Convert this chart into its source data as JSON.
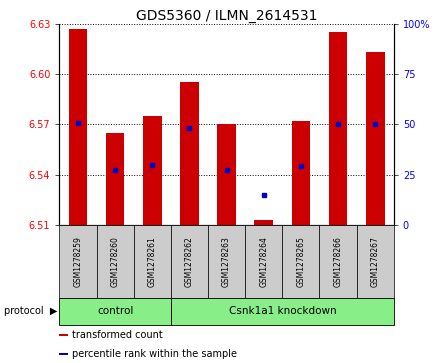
{
  "title": "GDS5360 / ILMN_2614531",
  "samples": [
    "GSM1278259",
    "GSM1278260",
    "GSM1278261",
    "GSM1278262",
    "GSM1278263",
    "GSM1278264",
    "GSM1278265",
    "GSM1278266",
    "GSM1278267"
  ],
  "transformed_count_top": [
    6.627,
    6.565,
    6.575,
    6.595,
    6.57,
    6.513,
    6.572,
    6.625,
    6.613
  ],
  "transformed_count_bottom": [
    6.51,
    6.51,
    6.51,
    6.51,
    6.51,
    6.51,
    6.51,
    6.51,
    6.51
  ],
  "percentile_rank_y": [
    6.571,
    6.543,
    6.546,
    6.568,
    6.543,
    6.528,
    6.545,
    6.57,
    6.57
  ],
  "ylim": [
    6.51,
    6.63
  ],
  "yticks_left": [
    6.51,
    6.54,
    6.57,
    6.6,
    6.63
  ],
  "yticks_right_labels": [
    "0",
    "25",
    "50",
    "75",
    "100%"
  ],
  "yticks_right_vals": [
    0,
    25,
    50,
    75,
    100
  ],
  "bar_color": "#cc0000",
  "dot_color": "#0000cc",
  "protocol_groups": [
    {
      "label": "control",
      "start": 0,
      "end": 3
    },
    {
      "label": "Csnk1a1 knockdown",
      "start": 3,
      "end": 9
    }
  ],
  "protocol_bg_color": "#88ee88",
  "sample_bg_color": "#cccccc",
  "legend_items": [
    {
      "color": "#cc0000",
      "label": "transformed count"
    },
    {
      "color": "#0000cc",
      "label": "percentile rank within the sample"
    }
  ],
  "bar_width": 0.5
}
